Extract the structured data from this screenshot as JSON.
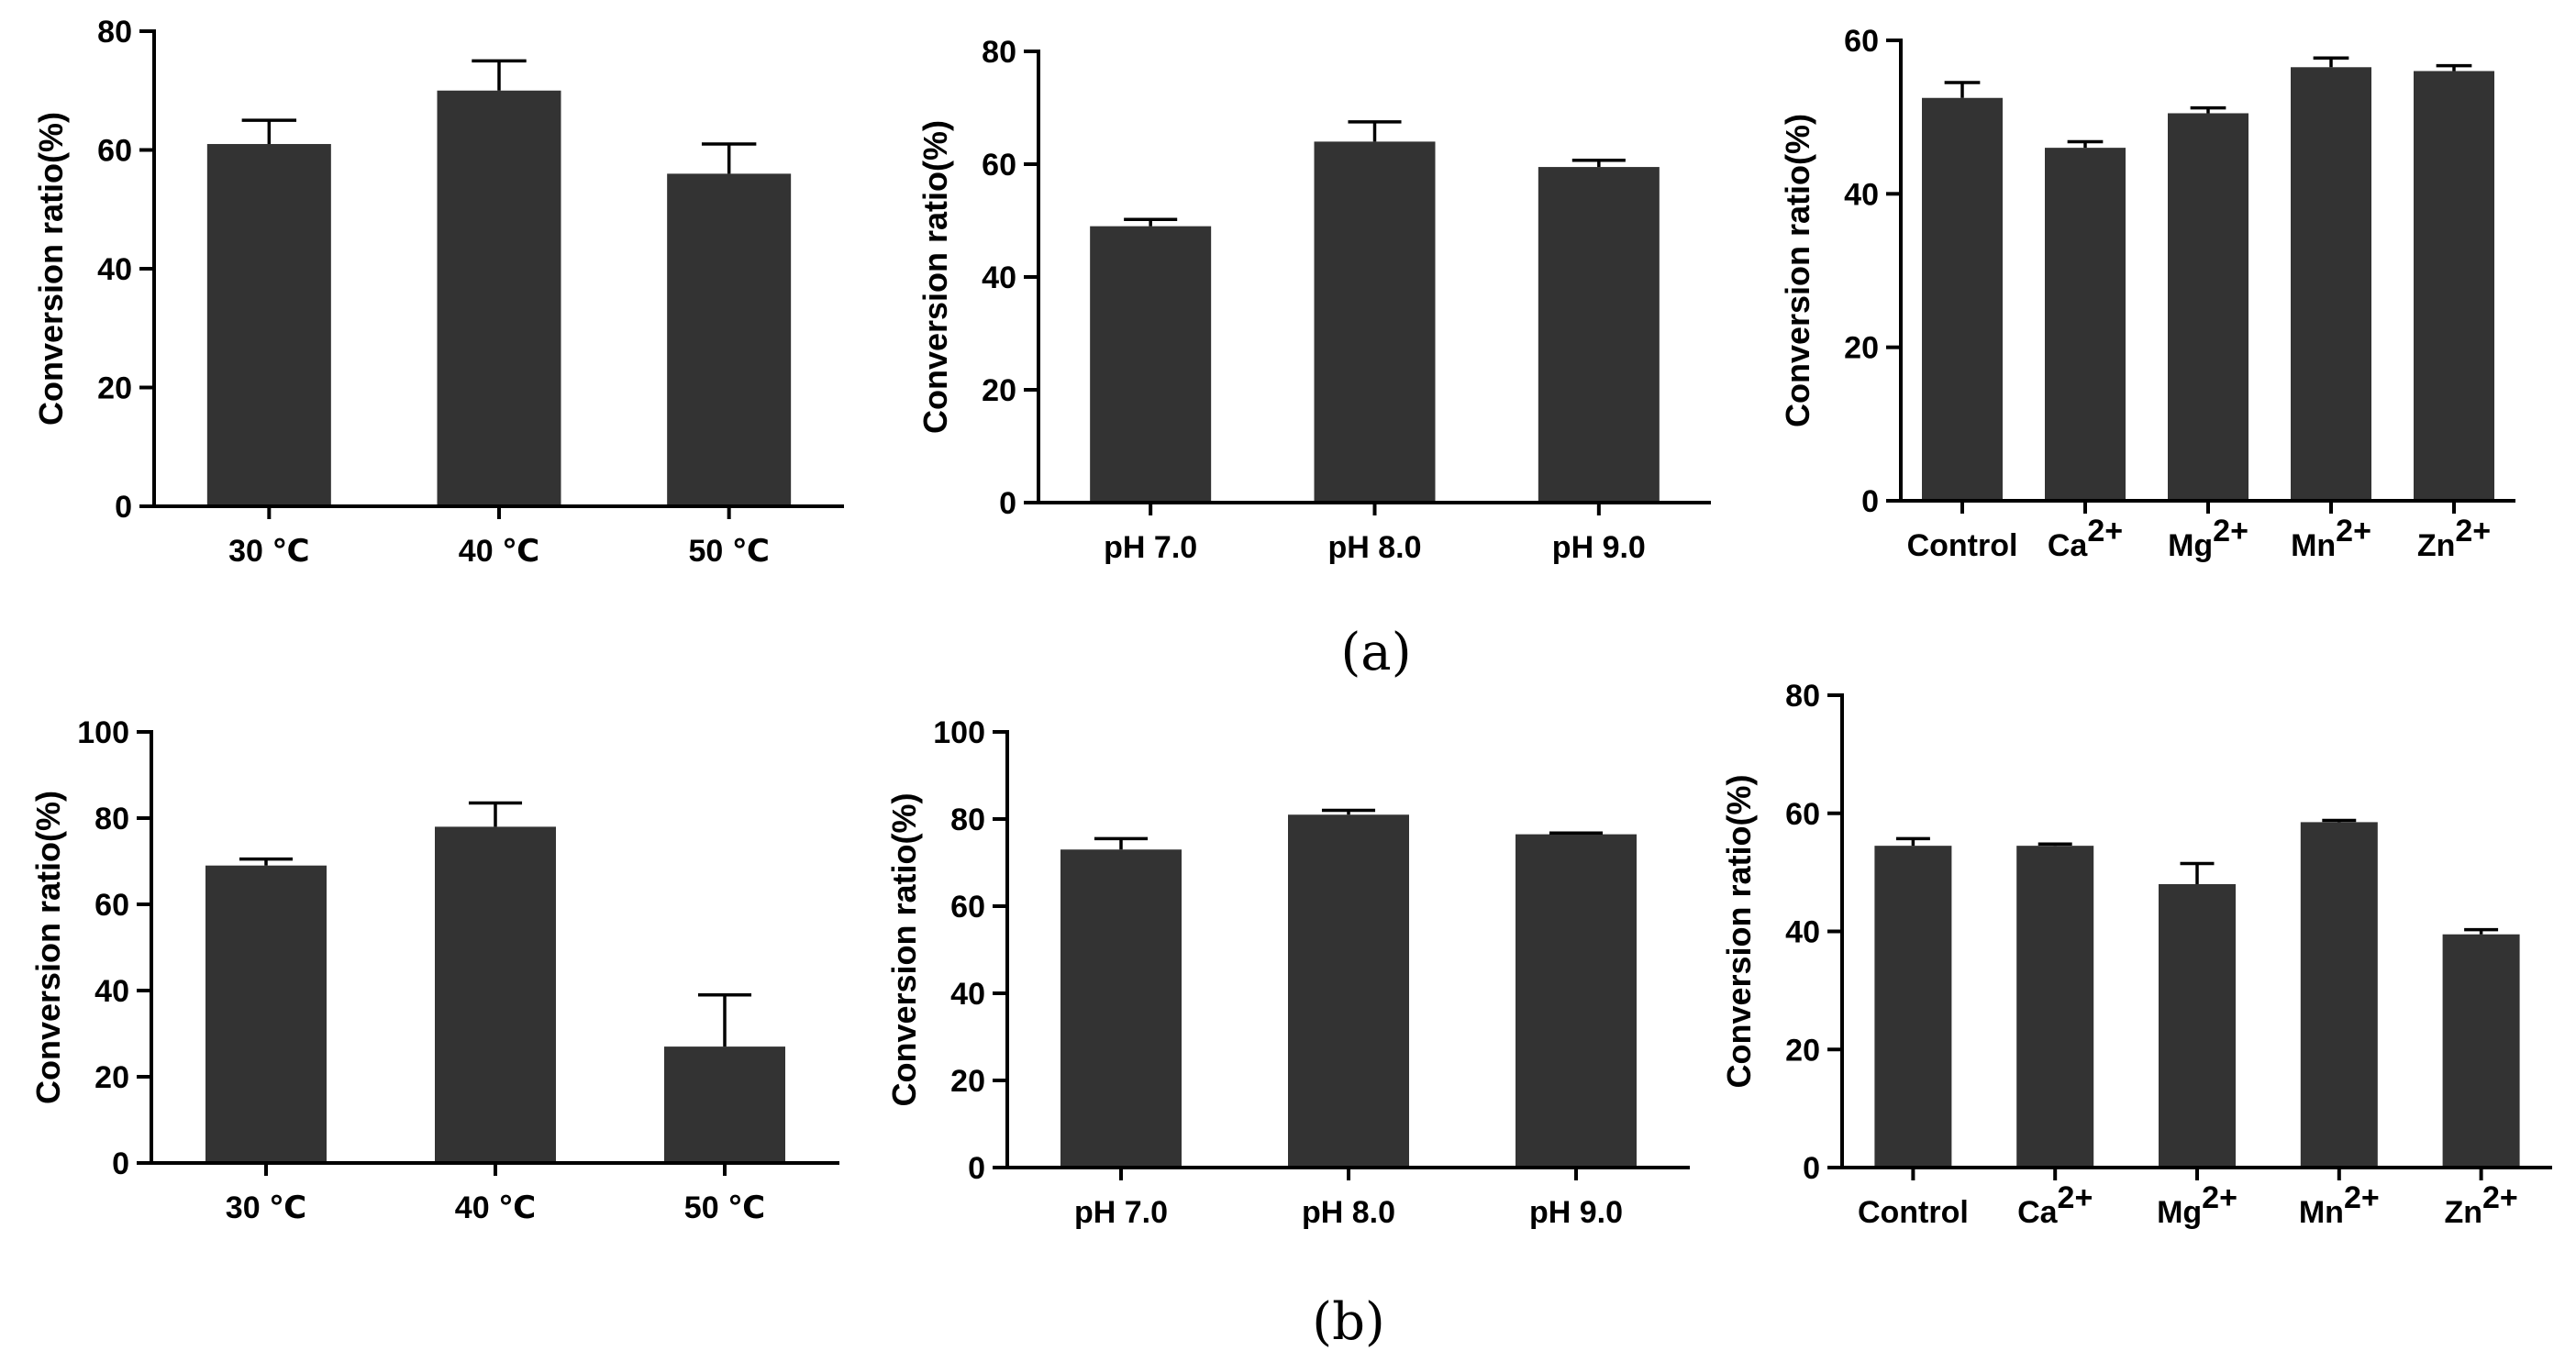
{
  "colors": {
    "bar": "#333333",
    "axis": "#000000",
    "background": "#ffffff"
  },
  "captions": {
    "a": "(a)",
    "b": "(b)"
  },
  "chart_data": [
    {
      "id": "a1",
      "row": "a",
      "type": "bar",
      "ylabel": "Conversion ratio(%)",
      "ylim": [
        0,
        80
      ],
      "yticks": [
        0,
        20,
        40,
        60,
        80
      ],
      "categories": [
        "30 ℃",
        "40 ℃",
        "50 ℃"
      ],
      "values": [
        61,
        70,
        56
      ],
      "errors": [
        4,
        5,
        5
      ],
      "grid": false,
      "legend": "none"
    },
    {
      "id": "a2",
      "row": "a",
      "type": "bar",
      "ylabel": "Conversion ratio(%)",
      "ylim": [
        0,
        80
      ],
      "yticks": [
        0,
        20,
        40,
        60,
        80
      ],
      "categories": [
        "pH 7.0",
        "pH 8.0",
        "pH 9.0"
      ],
      "values": [
        49,
        64,
        59.5
      ],
      "errors": [
        1.2,
        3.5,
        1.2
      ],
      "grid": false,
      "legend": "none"
    },
    {
      "id": "a3",
      "row": "a",
      "type": "bar",
      "ylabel": "Conversion ratio(%)",
      "ylim": [
        0,
        60
      ],
      "yticks": [
        0,
        20,
        40,
        60
      ],
      "categories": [
        {
          "base": "Control",
          "sup": ""
        },
        {
          "base": "Ca",
          "sup": "2+"
        },
        {
          "base": "Mg",
          "sup": "2+"
        },
        {
          "base": "Mn",
          "sup": "2+"
        },
        {
          "base": "Zn",
          "sup": "2+"
        }
      ],
      "values": [
        52.5,
        46,
        50.5,
        56.5,
        56
      ],
      "errors": [
        2,
        0.8,
        0.7,
        1.2,
        0.7
      ],
      "grid": false,
      "legend": "none"
    },
    {
      "id": "b1",
      "row": "b",
      "type": "bar",
      "ylabel": "Conversion ratio(%)",
      "ylim": [
        0,
        100
      ],
      "yticks": [
        0,
        20,
        40,
        60,
        80,
        100
      ],
      "categories": [
        "30 ℃",
        "40 ℃",
        "50 ℃"
      ],
      "values": [
        69,
        78,
        27
      ],
      "errors": [
        1.5,
        5.5,
        12
      ],
      "grid": false,
      "legend": "none"
    },
    {
      "id": "b2",
      "row": "b",
      "type": "bar",
      "ylabel": "Conversion ratio(%)",
      "ylim": [
        0,
        100
      ],
      "yticks": [
        0,
        20,
        40,
        60,
        80,
        100
      ],
      "categories": [
        "pH 7.0",
        "pH 8.0",
        "pH 9.0"
      ],
      "values": [
        73,
        81,
        76.5
      ],
      "errors": [
        2.5,
        1,
        0.3
      ],
      "grid": false,
      "legend": "none"
    },
    {
      "id": "b3",
      "row": "b",
      "type": "bar",
      "ylabel": "Conversion ratio(%)",
      "ylim": [
        0,
        80
      ],
      "yticks": [
        0,
        20,
        40,
        60,
        80
      ],
      "categories": [
        {
          "base": "Control",
          "sup": ""
        },
        {
          "base": "Ca",
          "sup": "2+"
        },
        {
          "base": "Mg",
          "sup": "2+"
        },
        {
          "base": "Mn",
          "sup": "2+"
        },
        {
          "base": "Zn",
          "sup": "2+"
        }
      ],
      "values": [
        54.5,
        54.5,
        48,
        58.5,
        39.5
      ],
      "errors": [
        1.2,
        0.3,
        3.5,
        0.3,
        0.8
      ],
      "grid": false,
      "legend": "none"
    }
  ]
}
